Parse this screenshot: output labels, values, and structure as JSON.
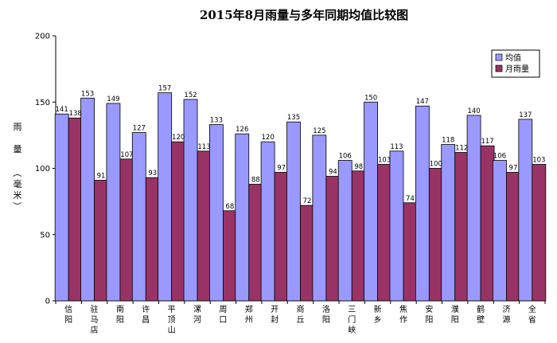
{
  "chart_data": {
    "type": "bar",
    "title": "2015年8月雨量与多年同期均值比较图",
    "ylabel": "雨量（毫米）",
    "ylim": [
      0,
      200
    ],
    "yticks": [
      0,
      50,
      100,
      150,
      200
    ],
    "grid": false,
    "legend_position": "top-right",
    "categories": [
      "信阳",
      "驻马店",
      "南阳",
      "许昌",
      "平顶山",
      "漯河",
      "周口",
      "郑州",
      "开封",
      "商丘",
      "洛阳",
      "三门峡",
      "新乡",
      "焦作",
      "安阳",
      "濮阳",
      "鹤壁",
      "济源",
      "全省"
    ],
    "series": [
      {
        "name": "均值",
        "color": "#9999ff",
        "values": [
          141,
          153,
          149,
          127,
          157,
          152,
          133,
          126,
          120,
          135,
          125,
          106,
          150,
          113,
          147,
          118,
          140,
          106,
          137
        ]
      },
      {
        "name": "月雨量",
        "color": "#993366",
        "values": [
          138,
          91,
          107,
          93,
          120,
          113,
          68,
          88,
          97,
          72,
          94,
          98,
          103,
          74,
          100,
          112,
          117,
          97,
          103
        ]
      }
    ]
  }
}
